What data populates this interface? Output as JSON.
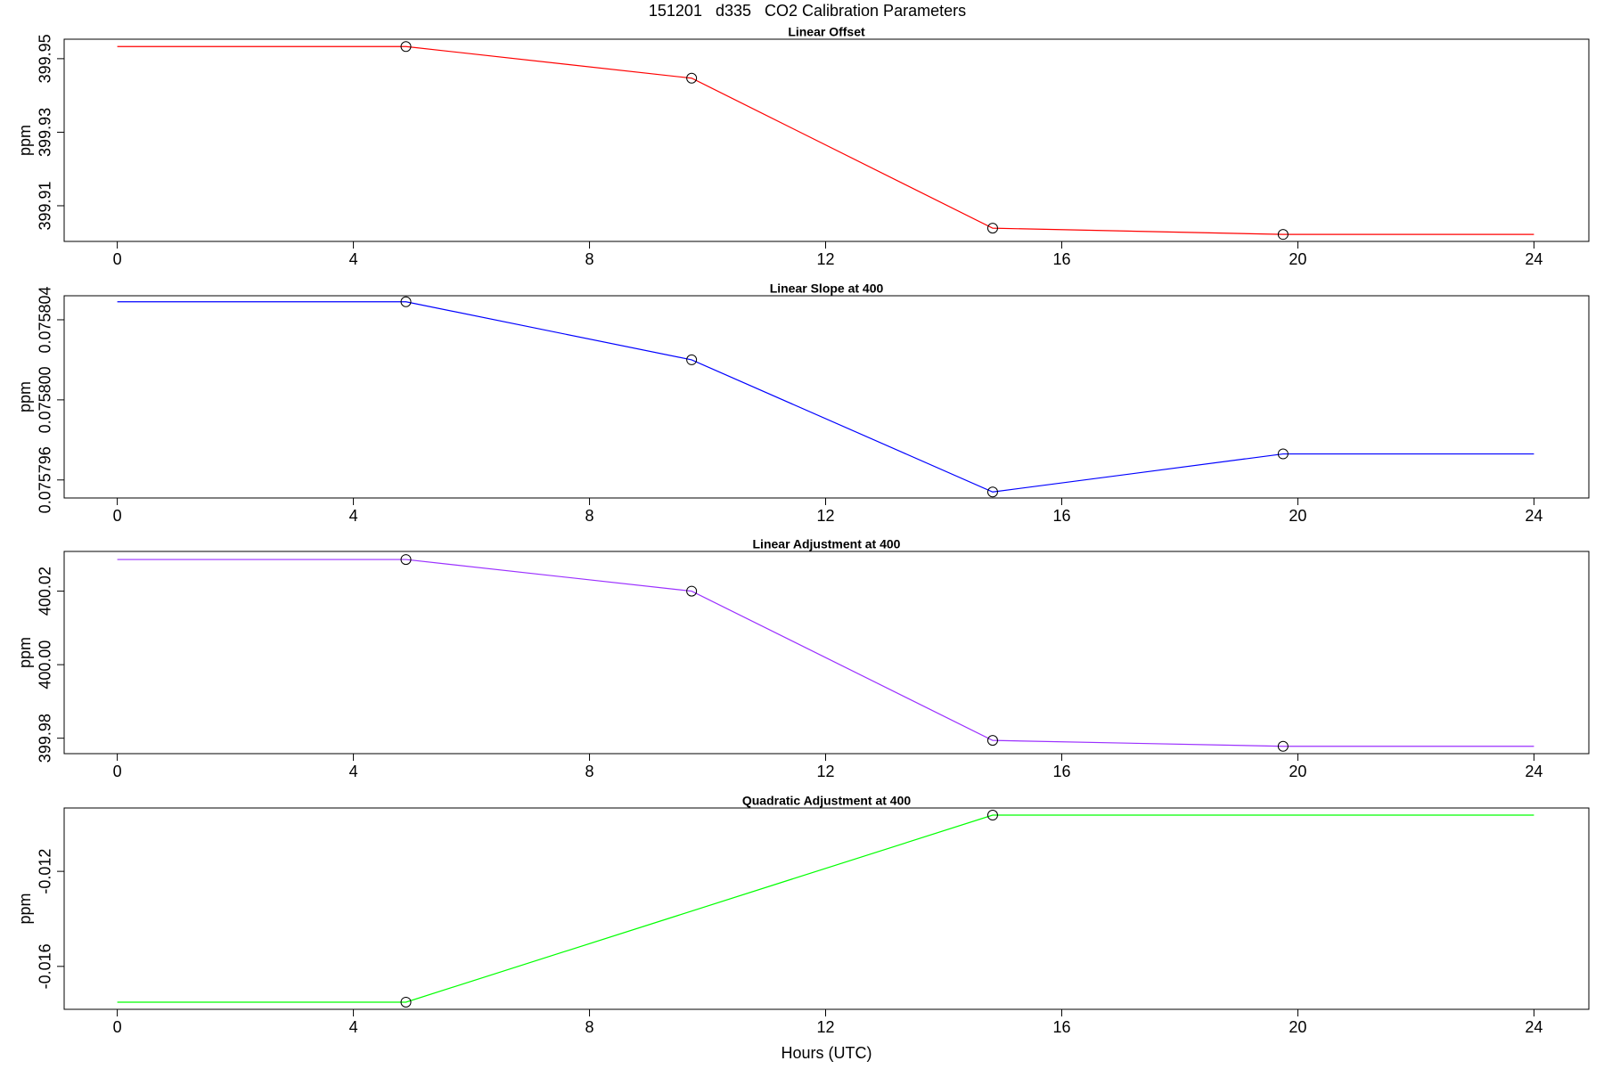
{
  "title": "151201   d335   CO2 Calibration Parameters",
  "chart_data": [
    {
      "type": "line",
      "title": "Linear Offset",
      "ylabel": "ppm",
      "x": [
        0,
        4.89,
        9.73,
        14.83,
        19.75,
        24
      ],
      "xlim": [
        -0.9,
        24.93
      ],
      "xticks": [
        0,
        4,
        8,
        12,
        16,
        20,
        24
      ],
      "ylim": [
        399.9003,
        399.9553
      ],
      "yticks": [
        399.91,
        399.93,
        399.95
      ],
      "series": [
        {
          "color": "#ff0000",
          "values": [
            399.9533,
            399.9533,
            399.9447,
            399.9039,
            399.9022,
            399.9022
          ],
          "markers": [
            false,
            true,
            true,
            true,
            true,
            false
          ]
        }
      ]
    },
    {
      "type": "line",
      "title": "Linear Slope at 400",
      "ylabel": "ppm",
      "x": [
        0,
        4.89,
        9.73,
        14.83,
        19.75,
        24
      ],
      "xlim": [
        -0.9,
        24.93
      ],
      "xticks": [
        0,
        4,
        8,
        12,
        16,
        20,
        24
      ],
      "ylim": [
        0.0757951,
        0.0758052
      ],
      "yticks": [
        0.075796,
        {
          "value": 0.0758,
          "label": "0.075800"
        },
        0.075804
      ],
      "series": [
        {
          "color": "#0000ff",
          "values": [
            0.0758049,
            0.0758049,
            0.075802,
            0.0757954,
            0.0757973,
            0.0757973
          ],
          "markers": [
            false,
            true,
            true,
            true,
            true,
            false
          ]
        }
      ]
    },
    {
      "type": "line",
      "title": "Linear Adjustment at 400",
      "ylabel": "ppm",
      "x": [
        0,
        4.89,
        9.73,
        14.83,
        19.75,
        24
      ],
      "xlim": [
        -0.9,
        24.93
      ],
      "xticks": [
        0,
        4,
        8,
        12,
        16,
        20,
        24
      ],
      "ylim": [
        399.9758,
        400.0308
      ],
      "yticks": [
        399.98,
        {
          "value": 400,
          "label": "400.00"
        },
        400.02
      ],
      "series": [
        {
          "color": "#9b30ff",
          "values": [
            400.0286,
            400.0286,
            400.02,
            399.9794,
            399.9778,
            399.9778
          ],
          "markers": [
            false,
            true,
            true,
            true,
            true,
            false
          ]
        }
      ]
    },
    {
      "type": "line",
      "title": "Quadratic Adjustment at 400",
      "ylabel": "ppm",
      "xlabel": "Hours (UTC)",
      "x": [
        0,
        4.89,
        14.83,
        24
      ],
      "xlim": [
        -0.9,
        24.93
      ],
      "xticks": [
        0,
        4,
        8,
        12,
        16,
        20,
        24
      ],
      "ylim": [
        -0.017806,
        -0.009333
      ],
      "yticks": [
        -0.016,
        -0.012
      ],
      "series": [
        {
          "color": "#00ff00",
          "values": [
            -0.017505,
            -0.017505,
            -0.009634,
            -0.009634
          ],
          "markers": [
            false,
            true,
            true,
            false
          ]
        }
      ]
    }
  ]
}
